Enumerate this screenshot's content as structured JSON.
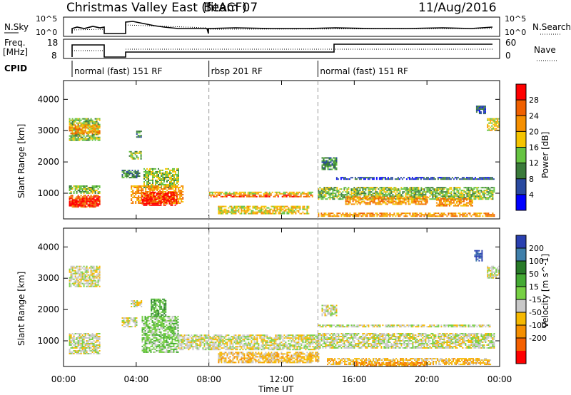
{
  "chart_data": {
    "type": "heatmap",
    "title": "Christmas Valley East (fitACF)",
    "beam_label": "Beam 07",
    "date": "11/Aug/2016",
    "xlabel": "Time UT",
    "x_ticks": [
      "00:00",
      "04:00",
      "08:00",
      "12:00",
      "16:00",
      "20:00",
      "00:00"
    ],
    "xlim_hours": [
      0,
      24
    ],
    "top_panels": {
      "nsky": {
        "label": "N.Sky",
        "right_label": "N.Search",
        "ticks": [
          "10^5",
          "10^0"
        ]
      },
      "freq": {
        "label_line1": "Freq.",
        "label_line2": "[MHz]",
        "left_ticks": [
          18,
          8
        ],
        "right_label": "Nave",
        "right_ticks": [
          60,
          0
        ]
      },
      "cpid": {
        "label": "CPID",
        "segments": [
          {
            "start_hour": 0.0,
            "end_hour": 8.0,
            "name": "normal (fast) 151 RF"
          },
          {
            "start_hour": 8.0,
            "end_hour": 14.0,
            "name": "rbsp 201 RF"
          },
          {
            "start_hour": 14.0,
            "end_hour": 24.0,
            "name": "normal (fast) 151 RF"
          }
        ]
      }
    },
    "ylabel": "Slant Range [km]",
    "y_ticks": [
      1000,
      2000,
      3000,
      4000
    ],
    "ylim_km": [
      180,
      4600
    ],
    "power_colorbar": {
      "label": "Power [dB]",
      "ticks": [
        4,
        8,
        12,
        16,
        20,
        24,
        28
      ],
      "colors": [
        "#0000ff",
        "#2a4aa0",
        "#3a7a3a",
        "#66c442",
        "#f5c400",
        "#f58f00",
        "#f06000",
        "#ff0000"
      ]
    },
    "velocity_colorbar": {
      "label": "Velocity [m s^-1]",
      "ticks": [
        "200",
        "100",
        "50",
        "15",
        "-15",
        "-50",
        "-100",
        "-200"
      ],
      "colors": [
        "#2a40b0",
        "#3f7faa",
        "#287a28",
        "#44aa33",
        "#77d044",
        "#c8c8c8",
        "#f5b800",
        "#f58f00",
        "#f56000",
        "#ff0000"
      ]
    },
    "power_regions": [
      {
        "t0": 0.3,
        "t1": 2.0,
        "r0": 2700,
        "r1": 3400,
        "level": 3
      },
      {
        "t0": 0.3,
        "t1": 2.0,
        "r0": 2900,
        "r1": 3200,
        "level": 5
      },
      {
        "t0": 0.3,
        "t1": 2.0,
        "r0": 980,
        "r1": 1250,
        "level": 3
      },
      {
        "t0": 0.3,
        "t1": 2.0,
        "r0": 550,
        "r1": 950,
        "level": 6
      },
      {
        "t0": 0.3,
        "t1": 2.0,
        "r0": 620,
        "r1": 850,
        "level": 7
      },
      {
        "t0": 3.2,
        "t1": 4.2,
        "r0": 1500,
        "r1": 1750,
        "level": 2
      },
      {
        "t0": 3.6,
        "t1": 4.3,
        "r0": 2100,
        "r1": 2350,
        "level": 3
      },
      {
        "t0": 4.0,
        "t1": 4.3,
        "r0": 2800,
        "r1": 3000,
        "level": 2
      },
      {
        "t0": 4.4,
        "t1": 6.3,
        "r0": 1200,
        "r1": 1800,
        "level": 3
      },
      {
        "t0": 3.7,
        "t1": 6.6,
        "r0": 680,
        "r1": 1250,
        "level": 5
      },
      {
        "t0": 4.3,
        "t1": 6.2,
        "r0": 600,
        "r1": 1050,
        "level": 7
      },
      {
        "t0": 8.0,
        "t1": 13.7,
        "r0": 960,
        "r1": 1050,
        "level": 4
      },
      {
        "t0": 8.0,
        "t1": 13.7,
        "r0": 870,
        "r1": 960,
        "level": 6
      },
      {
        "t0": 8.5,
        "t1": 13.5,
        "r0": 350,
        "r1": 600,
        "level": 4
      },
      {
        "t0": 14.2,
        "t1": 15.0,
        "r0": 1750,
        "r1": 2150,
        "level": 2
      },
      {
        "t0": 15.0,
        "t1": 23.7,
        "r0": 1450,
        "r1": 1520,
        "level": 1
      },
      {
        "t0": 14.0,
        "t1": 23.7,
        "r0": 800,
        "r1": 1200,
        "level": 3
      },
      {
        "t0": 15.5,
        "t1": 20.0,
        "r0": 650,
        "r1": 900,
        "level": 5
      },
      {
        "t0": 20.5,
        "t1": 22.5,
        "r0": 620,
        "r1": 850,
        "level": 5
      },
      {
        "t0": 14.0,
        "t1": 23.7,
        "r0": 250,
        "r1": 380,
        "level": 5
      },
      {
        "t0": 23.3,
        "t1": 24.0,
        "r0": 3000,
        "r1": 3400,
        "level": 4
      },
      {
        "t0": 22.7,
        "t1": 23.2,
        "r0": 3550,
        "r1": 3800,
        "level": 1
      }
    ],
    "velocity_regions": [
      {
        "t0": 0.3,
        "t1": 2.0,
        "r0": 2750,
        "r1": 3400,
        "level": 5
      },
      {
        "t0": 0.3,
        "t1": 2.0,
        "r0": 580,
        "r1": 1250,
        "level": 5
      },
      {
        "t0": 3.2,
        "t1": 4.0,
        "r0": 1450,
        "r1": 1750,
        "level": 5
      },
      {
        "t0": 3.7,
        "t1": 4.3,
        "r0": 2100,
        "r1": 2300,
        "level": 5
      },
      {
        "t0": 4.3,
        "t1": 6.3,
        "r0": 620,
        "r1": 1800,
        "level": 4
      },
      {
        "t0": 4.8,
        "t1": 5.6,
        "r0": 1800,
        "r1": 2350,
        "level": 3
      },
      {
        "t0": 6.3,
        "t1": 14.0,
        "r0": 700,
        "r1": 1200,
        "level": 5
      },
      {
        "t0": 8.5,
        "t1": 14.0,
        "r0": 300,
        "r1": 650,
        "level": 6
      },
      {
        "t0": 14.2,
        "t1": 15.0,
        "r0": 1800,
        "r1": 2150,
        "level": 5
      },
      {
        "t0": 14.0,
        "t1": 23.7,
        "r0": 750,
        "r1": 1250,
        "level": 5
      },
      {
        "t0": 14.0,
        "t1": 23.5,
        "r0": 1450,
        "r1": 1520,
        "level": 5
      },
      {
        "t0": 14.5,
        "t1": 23.5,
        "r0": 250,
        "r1": 450,
        "level": 6
      },
      {
        "t0": 16.0,
        "t1": 20.0,
        "r0": 200,
        "r1": 320,
        "level": 7
      },
      {
        "t0": 23.3,
        "t1": 24.0,
        "r0": 3000,
        "r1": 3400,
        "level": 5
      },
      {
        "t0": 22.6,
        "t1": 23.0,
        "r0": 3550,
        "r1": 3900,
        "level": 0
      }
    ]
  }
}
